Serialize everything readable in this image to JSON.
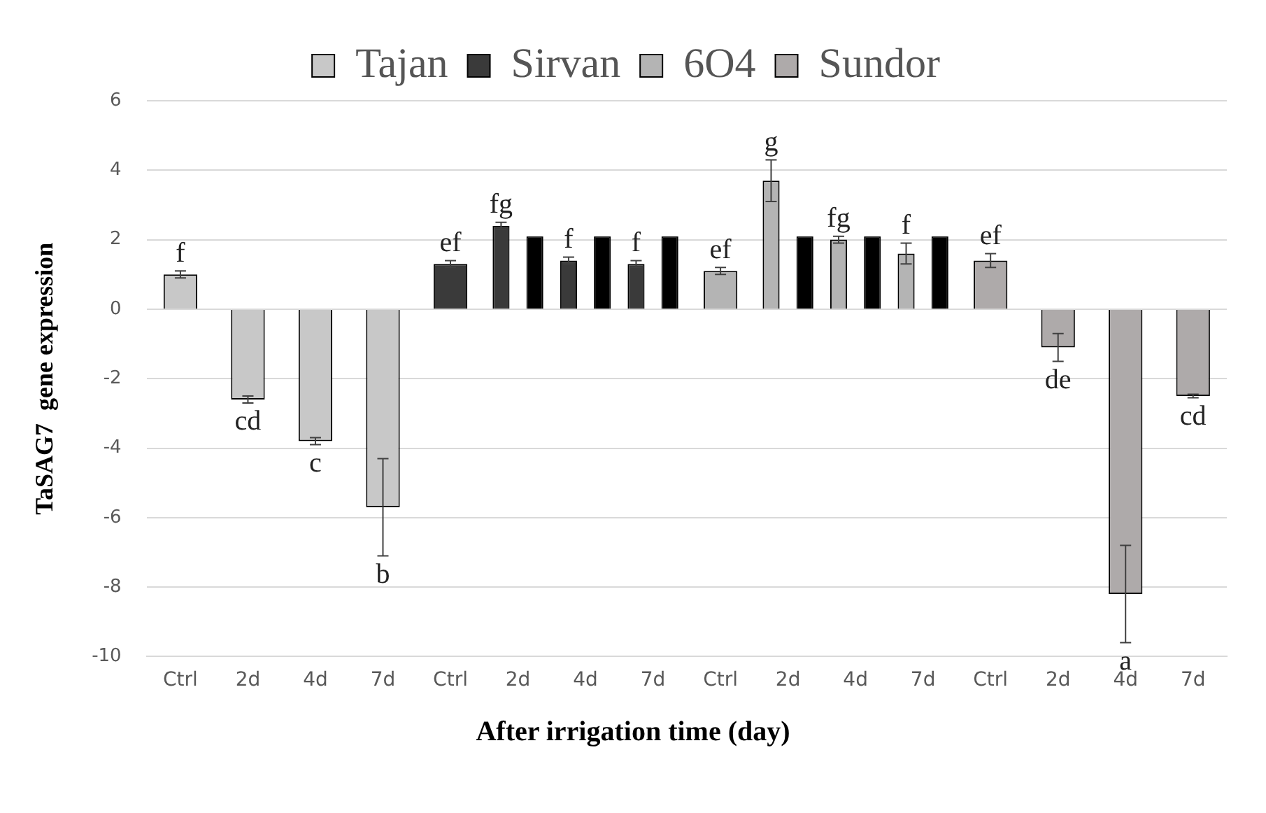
{
  "chart_data": {
    "type": "bar",
    "xlabel": "After irrigation time (day)",
    "ylabel": "TaSAG7  gene expression",
    "categories": [
      "Ctrl",
      "2d",
      "4d",
      "7d",
      "Ctrl",
      "2d",
      "4d",
      "7d",
      "Ctrl",
      "2d",
      "4d",
      "7d",
      "Ctrl",
      "2d",
      "4d",
      "7d"
    ],
    "series": [
      {
        "name": "Tajan",
        "color": "#c8c8c8",
        "values": [
          1.0,
          -2.6,
          -3.8,
          -5.7,
          null,
          null,
          null,
          null,
          null,
          null,
          null,
          null,
          null,
          null,
          null,
          null
        ],
        "errors": [
          0.1,
          0.1,
          0.1,
          1.4,
          null,
          null,
          null,
          null,
          null,
          null,
          null,
          null,
          null,
          null,
          null,
          null
        ],
        "value_labels": [
          "f",
          "cd",
          "c",
          "b",
          null,
          null,
          null,
          null,
          null,
          null,
          null,
          null,
          null,
          null,
          null,
          null
        ]
      },
      {
        "name": "Sirvan",
        "color": "#3a3a3a",
        "values": [
          null,
          null,
          null,
          null,
          1.3,
          2.4,
          1.4,
          1.3,
          null,
          null,
          null,
          null,
          null,
          null,
          null,
          null
        ],
        "errors": [
          null,
          null,
          null,
          null,
          0.1,
          0.1,
          0.1,
          0.1,
          null,
          null,
          null,
          null,
          null,
          null,
          null,
          null
        ],
        "value_labels": [
          null,
          null,
          null,
          null,
          "ef",
          "fg",
          "f",
          "f",
          null,
          null,
          null,
          null,
          null,
          null,
          null,
          null
        ]
      },
      {
        "name": "6O4",
        "color": "#b4b4b4",
        "values": [
          null,
          null,
          null,
          null,
          null,
          null,
          null,
          null,
          1.1,
          3.7,
          2.0,
          1.6,
          null,
          null,
          null,
          null
        ],
        "errors": [
          null,
          null,
          null,
          null,
          null,
          null,
          null,
          null,
          0.1,
          0.6,
          0.1,
          0.3,
          null,
          null,
          null,
          null
        ],
        "value_labels": [
          null,
          null,
          null,
          null,
          null,
          null,
          null,
          null,
          "ef",
          "g",
          "fg",
          "f",
          null,
          null,
          null,
          null
        ]
      },
      {
        "name": "Sundor",
        "color": "#aeaaaa",
        "values": [
          null,
          null,
          null,
          null,
          null,
          null,
          null,
          null,
          null,
          null,
          null,
          null,
          1.4,
          -1.1,
          -8.2,
          -2.5
        ],
        "errors": [
          null,
          null,
          null,
          null,
          null,
          null,
          null,
          null,
          null,
          null,
          null,
          null,
          0.2,
          0.4,
          1.4,
          0.05
        ],
        "value_labels": [
          null,
          null,
          null,
          null,
          null,
          null,
          null,
          null,
          null,
          null,
          null,
          null,
          "ef",
          "de",
          "a",
          "cd"
        ]
      },
      {
        "color": "#000000",
        "values": [
          null,
          null,
          null,
          null,
          null,
          2.1,
          2.1,
          2.1,
          null,
          2.1,
          2.1,
          2.1,
          null,
          null,
          null,
          null
        ]
      }
    ],
    "ylim": [
      -10,
      6
    ],
    "yticks": [
      -10,
      -8,
      -6,
      -4,
      -2,
      0,
      2,
      4,
      6
    ],
    "grid": "y",
    "legend": "top"
  }
}
